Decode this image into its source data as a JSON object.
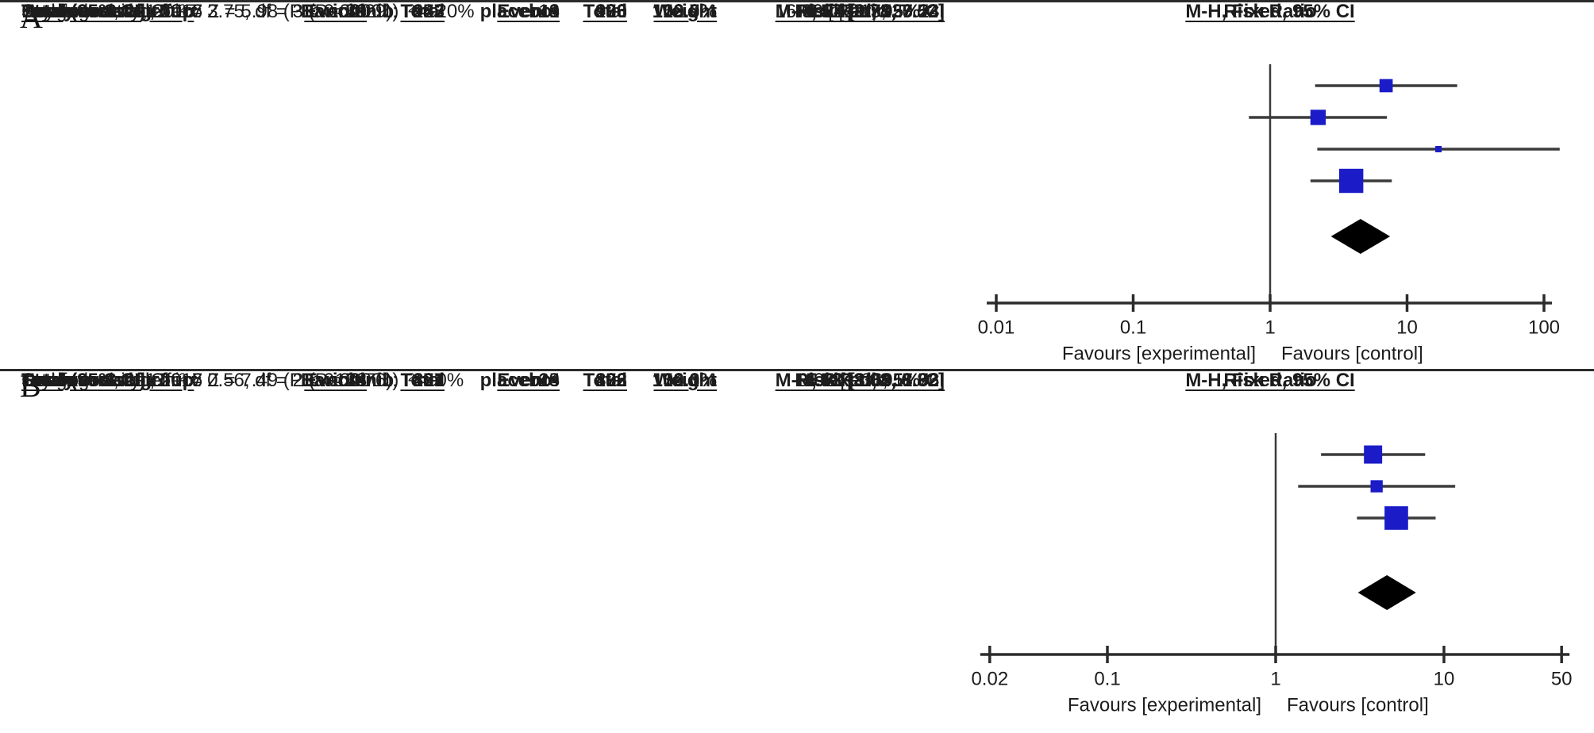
{
  "colors": {
    "square": "#1b1bc8",
    "diamond": "#000000",
    "line": "#3b3b3b",
    "axis": "#2b2b2b",
    "text": "#1c1c1c"
  },
  "chart_data": [
    {
      "type": "forest_plot",
      "panel_label": "A",
      "group1": "Baricitinib",
      "group2": "placebo",
      "columns": [
        "Study or Subgroup",
        "Events",
        "Total",
        "Events",
        "Total",
        "Weight",
        "M-H, Fixed, 95% CI"
      ],
      "effect_header": [
        "Risk Ratio",
        "M-H, Fixed, 95% CI"
      ],
      "studies": [
        {
          "study": "Dougados et al, 2017",
          "events1": "21",
          "total1": "227",
          "events2": "3",
          "total2": "228",
          "weight": "16.9%",
          "ci_text": "7.03 [2.13, 23.24]",
          "rr": 7.03,
          "lo": 2.13,
          "hi": 23.24,
          "weight_pct": 16.9
        },
        {
          "study": "Genovese et al, 2016",
          "events1": "9",
          "total1": "177",
          "events2": "4",
          "total2": "176",
          "weight": "22.7%",
          "ci_text": "2.24 [0.70, 7.13]",
          "rr": 2.24,
          "lo": 0.7,
          "hi": 7.13,
          "weight_pct": 22.7
        },
        {
          "study": "Keystone et al, 2015",
          "events1": "9",
          "total1": "52",
          "events2": "1",
          "total2": "98",
          "weight": "3.9%",
          "ci_text": "16.96 [2.21, 130.24]",
          "rr": 16.96,
          "lo": 2.21,
          "hi": 130.24,
          "weight_pct": 3.9
        },
        {
          "study": "Taylor et al, 2017",
          "events1": "39",
          "total1": "487",
          "events2": "10",
          "total2": "488",
          "weight": "56.5%",
          "ci_text": "3.91 [1.97, 7.74]",
          "rr": 3.91,
          "lo": 1.97,
          "hi": 7.74,
          "weight_pct": 56.5
        }
      ],
      "total": {
        "label": "Total (95% CI)",
        "total1": "943",
        "total2": "990",
        "weight": "100.0%",
        "ci_text": "4.57 [2.78, 7.52]",
        "rr": 4.57,
        "lo": 2.78,
        "hi": 7.52
      },
      "total_events": {
        "label": "Total events",
        "events1": "78",
        "events2": "18"
      },
      "heterogeneity": "Heterogeneity: Chi² = 3.75, df = 3 (P = 0.29); I² = 20%",
      "overall_effect": "Test for overall effect: Z = 5.98 (P < 0.00001)",
      "axis": {
        "scale": "log",
        "ticks": [
          0.01,
          0.1,
          1,
          10,
          100
        ],
        "tick_labels": [
          "0.01",
          "0.1",
          "1",
          "10",
          "100"
        ]
      },
      "favours_left": "Favours [experimental]",
      "favours_right": "Favours [control]"
    },
    {
      "type": "forest_plot",
      "panel_label": "B",
      "group1": "Baricitinib",
      "group2": "placebo",
      "columns": [
        "Study or Subgroup",
        "Events",
        "Total",
        "Events",
        "Total",
        "Weight",
        "M-H, Fixed, 95% CI"
      ],
      "effect_header": [
        "Risk Ratio",
        "M-H, Fixed, 95% CI"
      ],
      "studies": [
        {
          "study": "Dougados et al, 2017",
          "events1": "34",
          "total1": "227",
          "events2": "9",
          "total2": "228",
          "weight": "32.1%",
          "ci_text": "3.79 [1.86, 7.73]",
          "rr": 3.79,
          "lo": 1.86,
          "hi": 7.73,
          "weight_pct": 32.1
        },
        {
          "study": "Genovese et al, 2016",
          "events1": "16",
          "total1": "177",
          "events2": "4",
          "total2": "176",
          "weight": "14.3%",
          "ci_text": "3.98 [1.36, 11.66]",
          "rr": 3.98,
          "lo": 1.36,
          "hi": 11.66,
          "weight_pct": 14.3
        },
        {
          "study": "Taylor et al, 2017",
          "events1": "78",
          "total1": "487",
          "events2": "15",
          "total2": "488",
          "weight": "53.6%",
          "ci_text": "5.21 [3.04, 8.92]",
          "rr": 5.21,
          "lo": 3.04,
          "hi": 8.92,
          "weight_pct": 53.6
        }
      ],
      "total": {
        "label": "Total (95% CI)",
        "total1": "891",
        "total2": "892",
        "weight": "100.0%",
        "ci_text": "4.58 [3.08, 6.82]",
        "rr": 4.58,
        "lo": 3.08,
        "hi": 6.82
      },
      "total_events": {
        "label": "Total events",
        "events1": "128",
        "events2": "28"
      },
      "heterogeneity": "Heterogeneity: Chi² = 0.56, df = 2 (P = 0.76); I² = 0%",
      "overall_effect": "Test for overall effect: Z = 7.49 (P < 0.00001)",
      "axis": {
        "scale": "log",
        "ticks": [
          0.02,
          0.1,
          1,
          10,
          50
        ],
        "tick_labels": [
          "0.02",
          "0.1",
          "1",
          "10",
          "50"
        ]
      },
      "favours_left": "Favours [experimental]",
      "favours_right": "Favours [control]"
    }
  ]
}
